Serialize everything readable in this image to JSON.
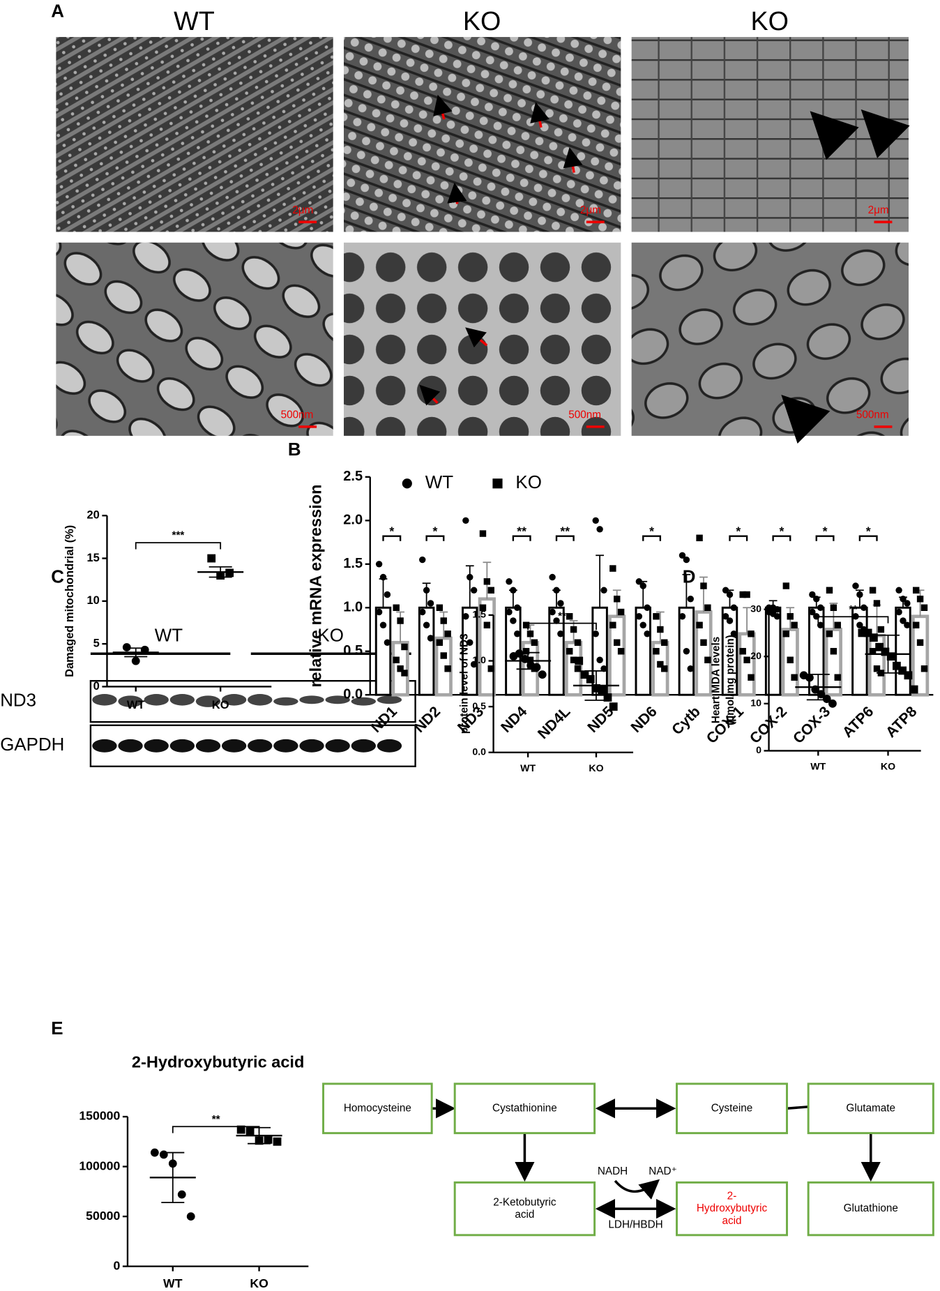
{
  "figure": {
    "panels": [
      "A",
      "B",
      "C",
      "D",
      "E"
    ]
  },
  "micrographs": {
    "columns": [
      "WT",
      "KO",
      "KO"
    ],
    "scale_bars": [
      "2μm",
      "2μm",
      "2μm",
      "500nm",
      "500nm",
      "500nm"
    ]
  },
  "western": {
    "groups": [
      "WT",
      "KO"
    ],
    "rows": [
      "ND3",
      "GAPDH"
    ]
  },
  "chart_data": [
    {
      "type": "dotplot",
      "y_label": "Damaged mitochondrial (%)",
      "categories": [
        "WT",
        "KO"
      ],
      "points": [
        [
          4.6,
          3.0,
          4.3
        ],
        [
          15.0,
          13.0,
          13.3
        ]
      ],
      "means": [
        4.0,
        13.4
      ],
      "errors": [
        0.5,
        0.6
      ],
      "significance": "***",
      "ylim": [
        0,
        20
      ],
      "yticks": [
        0,
        5,
        10,
        15,
        20
      ]
    },
    {
      "type": "bar",
      "y_label": "relative mRNA expression",
      "categories": [
        "ND1",
        "ND2",
        "ND3",
        "ND4",
        "ND4L",
        "ND5",
        "ND6",
        "Cytb",
        "COX-1",
        "COX-2",
        "COX-3",
        "ATP6",
        "ATP8"
      ],
      "series": [
        {
          "name": "WT",
          "color": "#000000",
          "values": [
            1.0,
            1.0,
            1.0,
            1.0,
            1.0,
            1.0,
            1.0,
            1.0,
            1.0,
            1.0,
            1.0,
            1.0,
            1.0
          ],
          "errors": [
            0.33,
            0.28,
            0.48,
            0.2,
            0.2,
            0.6,
            0.3,
            0.38,
            0.2,
            0.08,
            0.12,
            0.2,
            0.12
          ],
          "points": [
            [
              1.5,
              1.35,
              1.15,
              0.95,
              0.8,
              0.6
            ],
            [
              1.55,
              1.2,
              1.05,
              0.95,
              0.8,
              0.65
            ],
            [
              2.0,
              1.35,
              1.2,
              0.9,
              0.6,
              0.35
            ],
            [
              1.3,
              1.2,
              1.0,
              0.95,
              0.85,
              0.7
            ],
            [
              1.35,
              1.2,
              1.05,
              0.95,
              0.85,
              0.7
            ],
            [
              2.0,
              1.9,
              1.2,
              0.7,
              0.4,
              0.3
            ],
            [
              1.3,
              1.25,
              1.0,
              0.9,
              0.8,
              0.7
            ],
            [
              1.6,
              1.55,
              1.1,
              0.9,
              0.5,
              0.3
            ],
            [
              1.2,
              1.15,
              1.0,
              0.9,
              0.85,
              0.7
            ],
            [
              1.0,
              1.0,
              0.98,
              0.95,
              0.93,
              0.9
            ],
            [
              1.15,
              1.1,
              1.0,
              0.95,
              0.9,
              0.8
            ],
            [
              1.25,
              1.15,
              1.0,
              0.9,
              0.8,
              0.75
            ],
            [
              1.2,
              1.1,
              1.05,
              0.95,
              0.85,
              0.8
            ]
          ]
        },
        {
          "name": "KO",
          "color": "#a6a6a6",
          "values": [
            0.6,
            0.65,
            1.1,
            0.6,
            0.6,
            0.9,
            0.6,
            0.95,
            0.7,
            0.75,
            0.75,
            0.68,
            0.9
          ],
          "errors": [
            0.35,
            0.3,
            0.42,
            0.2,
            0.25,
            0.3,
            0.35,
            0.4,
            0.3,
            0.25,
            0.3,
            0.35,
            0.3
          ],
          "points": [
            [
              1.0,
              0.85,
              0.55,
              0.4,
              0.3,
              0.25
            ],
            [
              1.0,
              0.85,
              0.7,
              0.6,
              0.45,
              0.3
            ],
            [
              1.85,
              1.3,
              1.2,
              1.0,
              0.8,
              0.3
            ],
            [
              0.8,
              0.7,
              0.6,
              0.5,
              0.4,
              0.3
            ],
            [
              0.9,
              0.75,
              0.6,
              0.5,
              0.4,
              0.3
            ],
            [
              1.45,
              1.1,
              0.95,
              0.8,
              0.6,
              0.5
            ],
            [
              0.9,
              0.75,
              0.6,
              0.5,
              0.35,
              0.3
            ],
            [
              1.8,
              1.25,
              1.0,
              0.8,
              0.6,
              0.4
            ],
            [
              1.15,
              1.15,
              0.7,
              0.5,
              0.4,
              0.2
            ],
            [
              1.25,
              0.9,
              0.8,
              0.7,
              0.4,
              0.2
            ],
            [
              1.2,
              1.0,
              0.8,
              0.7,
              0.5,
              0.2
            ],
            [
              1.2,
              1.05,
              0.75,
              0.5,
              0.3,
              0.25
            ],
            [
              1.2,
              1.1,
              1.0,
              0.8,
              0.6,
              0.3
            ]
          ]
        }
      ],
      "significance": [
        "*",
        "*",
        null,
        "**",
        "**",
        null,
        "*",
        null,
        "*",
        "*",
        "*",
        "*",
        null
      ],
      "ylim": [
        0,
        2.5
      ],
      "yticks": [
        {
          "value": 0,
          "label": "0.0"
        },
        0.5,
        {
          "value": 1,
          "label": "1.0"
        },
        1.5,
        {
          "value": 2,
          "label": "2.0"
        },
        2.5
      ]
    },
    {
      "type": "dotplot",
      "y_label": "protein level of ND3",
      "categories": [
        "WT",
        "KO"
      ],
      "points": [
        [
          1.05,
          1.08,
          1.02,
          0.95,
          0.93,
          0.85
        ],
        [
          1.0,
          0.85,
          0.8,
          0.7,
          0.68,
          0.6,
          0.5
        ]
      ],
      "means": [
        1.0,
        0.73
      ],
      "errors": [
        0.09,
        0.16
      ],
      "significance": "**",
      "ylim": [
        0,
        1.5
      ],
      "yticks": [
        {
          "value": 0,
          "label": "0.0"
        },
        0.5,
        {
          "value": 1,
          "label": "1.0"
        },
        1.5
      ]
    },
    {
      "type": "dotplot",
      "y_label": [
        "Heart MDA levels",
        "(µmol/mg protein)"
      ],
      "categories": [
        "WT",
        "KO"
      ],
      "points": [
        [
          16,
          15.5,
          13,
          12,
          11,
          10
        ],
        [
          25,
          25,
          24,
          22,
          21,
          20,
          18,
          17,
          16,
          13
        ]
      ],
      "means": [
        13.5,
        20.5
      ],
      "errors": [
        2.7,
        4.0
      ],
      "significance": "**",
      "ylim": [
        0,
        30
      ],
      "yticks": [
        0,
        10,
        20,
        30
      ]
    },
    {
      "type": "dotplot",
      "title": "2-Hydroxybutyric acid",
      "categories": [
        "WT",
        "KO"
      ],
      "points": [
        [
          114000,
          112000,
          103000,
          72000,
          50000
        ],
        [
          137000,
          136000,
          126000,
          127000,
          125000
        ]
      ],
      "means": [
        89000,
        131000
      ],
      "errors": [
        25000,
        8000
      ],
      "significance": "**",
      "ylim": [
        0,
        150000
      ],
      "yticks": [
        0,
        50000,
        100000,
        150000
      ]
    }
  ],
  "pathway": {
    "nodes": [
      {
        "label_lines": [
          "Homocysteine"
        ]
      },
      {
        "label_lines": [
          "Cystathionine"
        ]
      },
      {
        "label_lines": [
          "Cysteine"
        ]
      },
      {
        "label_lines": [
          "Glutamate"
        ]
      },
      {
        "label_lines": [
          "2-Ketobutyric",
          "acid"
        ]
      },
      {
        "label_lines": [
          "2-",
          "Hydroxybutyric",
          "acid"
        ]
      },
      {
        "label_lines": [
          "Glutathione"
        ]
      }
    ],
    "cofactors": [
      "NADH",
      "NAD⁺"
    ],
    "enzyme": "LDH/HBDH"
  }
}
